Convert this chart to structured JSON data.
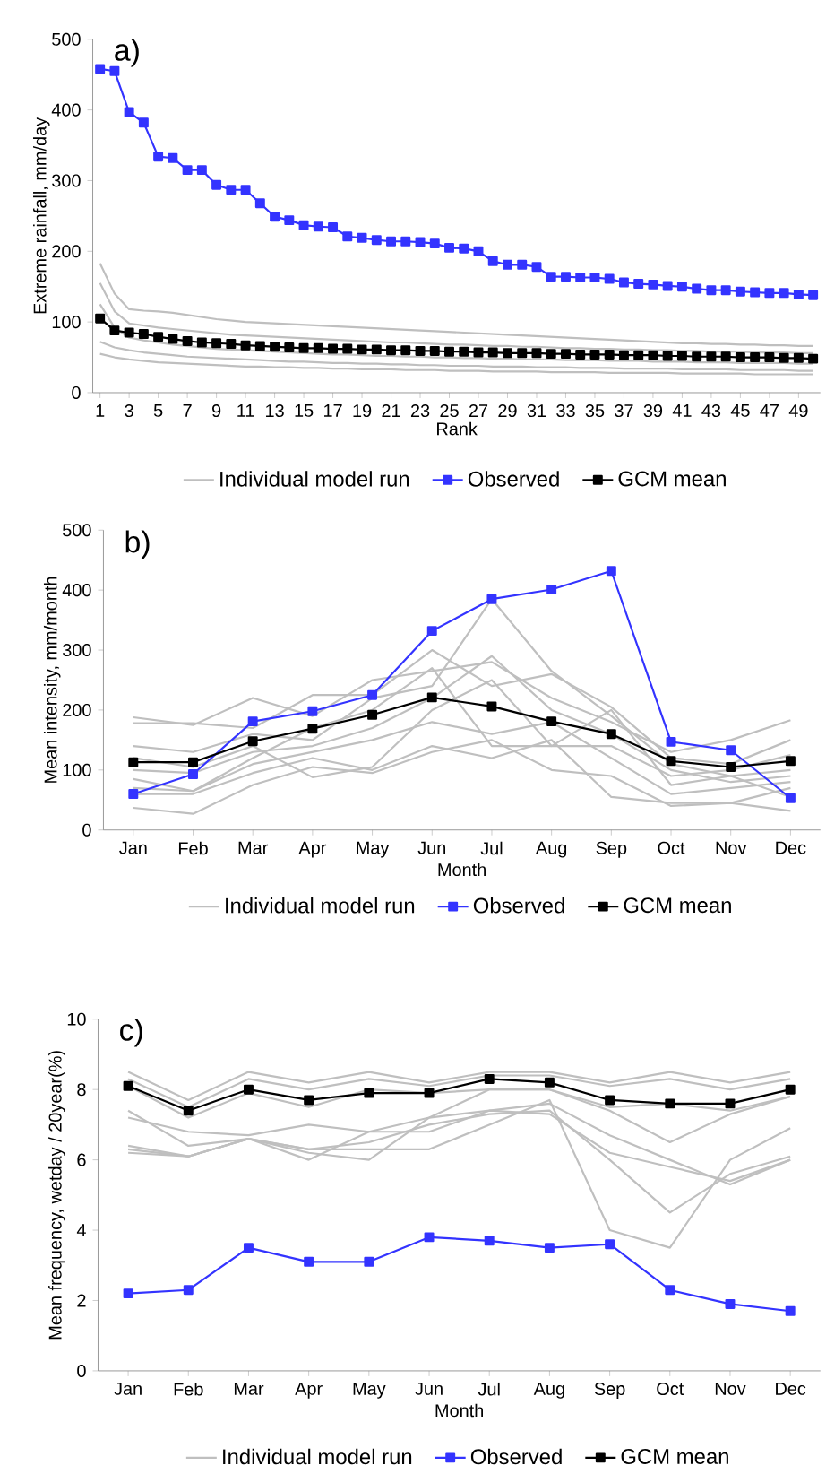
{
  "chart_data": [
    {
      "type": "line",
      "title": "a)",
      "xlabel": "Rank",
      "ylabel": "Extreme rainfall, mm/day",
      "legend": "bottom",
      "ylim": [
        0,
        500
      ],
      "yticks": [
        0,
        100,
        200,
        300,
        400,
        500
      ],
      "categories": [
        "1",
        null,
        "3",
        null,
        "5",
        null,
        "7",
        null,
        "9",
        null,
        "11",
        null,
        "13",
        null,
        "15",
        null,
        "17",
        null,
        "19",
        null,
        "21",
        null,
        "23",
        null,
        "25",
        null,
        "27",
        null,
        "29",
        null,
        "31",
        null,
        "33",
        null,
        "35",
        null,
        "37",
        null,
        "39",
        null,
        "41",
        null,
        "43",
        null,
        "45",
        null,
        "47",
        null,
        "49",
        null
      ],
      "series": [
        {
          "name": "Individual model run",
          "color": "#bfbfbf",
          "values": [
            183,
            140,
            118,
            116,
            115,
            113,
            110,
            107,
            104,
            102,
            100,
            99,
            98,
            97,
            96,
            95,
            94,
            93,
            92,
            91,
            90,
            89,
            88,
            87,
            86,
            85,
            84,
            83,
            82,
            81,
            80,
            79,
            78,
            77,
            76,
            75,
            74,
            73,
            72,
            71,
            70,
            70,
            69,
            69,
            68,
            68,
            67,
            67,
            66,
            66
          ]
        },
        {
          "color": "#bfbfbf",
          "values": [
            155,
            115,
            98,
            95,
            92,
            90,
            88,
            86,
            84,
            82,
            81,
            80,
            79,
            78,
            77,
            76,
            75,
            74,
            73,
            72,
            71,
            71,
            70,
            69,
            68,
            68,
            67,
            66,
            66,
            65,
            65,
            64,
            63,
            63,
            62,
            62,
            61,
            61,
            60,
            60,
            59,
            59,
            58,
            58,
            58,
            57,
            57,
            57,
            56,
            56
          ]
        },
        {
          "color": "#bfbfbf",
          "values": [
            125,
            92,
            78,
            74,
            71,
            68,
            66,
            64,
            62,
            61,
            60,
            59,
            58,
            57,
            56,
            55,
            54,
            54,
            53,
            52,
            52,
            51,
            51,
            50,
            50,
            49,
            49,
            48,
            48,
            47,
            47,
            47,
            46,
            46,
            46,
            45,
            45,
            45,
            44,
            44,
            44,
            43,
            43,
            43,
            42,
            42,
            42,
            42,
            41,
            41
          ]
        },
        {
          "color": "#bfbfbf",
          "values": [
            72,
            64,
            60,
            57,
            55,
            53,
            51,
            50,
            49,
            48,
            47,
            46,
            45,
            44,
            44,
            43,
            42,
            42,
            41,
            41,
            40,
            40,
            39,
            39,
            38,
            38,
            38,
            37,
            37,
            37,
            36,
            36,
            36,
            35,
            35,
            35,
            34,
            34,
            34,
            34,
            33,
            33,
            33,
            33,
            32,
            32,
            32,
            32,
            31,
            31
          ]
        },
        {
          "color": "#bfbfbf",
          "values": [
            55,
            50,
            47,
            45,
            43,
            42,
            41,
            40,
            39,
            38,
            37,
            37,
            36,
            36,
            35,
            35,
            34,
            34,
            33,
            33,
            33,
            32,
            32,
            32,
            31,
            31,
            31,
            30,
            30,
            30,
            30,
            29,
            29,
            29,
            29,
            28,
            28,
            28,
            28,
            28,
            27,
            27,
            27,
            27,
            27,
            26,
            26,
            26,
            26,
            26
          ]
        },
        {
          "name": "Observed",
          "color": "#3333ff",
          "marker": "square",
          "values": [
            458,
            455,
            397,
            382,
            334,
            332,
            315,
            315,
            294,
            287,
            287,
            268,
            249,
            244,
            237,
            235,
            234,
            221,
            219,
            216,
            214,
            214,
            213,
            211,
            205,
            204,
            200,
            186,
            181,
            181,
            178,
            164,
            164,
            163,
            163,
            161,
            156,
            154,
            153,
            151,
            150,
            147,
            145,
            145,
            143,
            142,
            141,
            141,
            139,
            138
          ]
        },
        {
          "name": "GCM mean",
          "color": "#000000",
          "marker": "square",
          "values": [
            105,
            88,
            85,
            83,
            79,
            76,
            73,
            71,
            70,
            69,
            67,
            66,
            65,
            64,
            63,
            63,
            62,
            62,
            61,
            61,
            60,
            60,
            59,
            59,
            58,
            58,
            57,
            57,
            56,
            56,
            56,
            55,
            55,
            54,
            54,
            54,
            53,
            53,
            53,
            52,
            52,
            51,
            51,
            51,
            50,
            50,
            50,
            49,
            49,
            48
          ]
        }
      ]
    },
    {
      "type": "line",
      "title": "b)",
      "xlabel": "Month",
      "ylabel": "Mean intensity, mm/month",
      "legend": "bottom",
      "ylim": [
        0,
        500
      ],
      "yticks": [
        0,
        100,
        200,
        300,
        400,
        500
      ],
      "categories": [
        "Jan",
        "Feb",
        "Mar",
        "Apr",
        "May",
        "Jun",
        "Jul",
        "Aug",
        "Sep",
        "Oct",
        "Nov",
        "Dec"
      ],
      "series": [
        {
          "name": "Individual model run",
          "color": "#bfbfbf",
          "values": [
            188,
            175,
            220,
            190,
            250,
            265,
            280,
            220,
            180,
            130,
            150,
            183
          ]
        },
        {
          "color": "#bfbfbf",
          "values": [
            178,
            178,
            170,
            225,
            225,
            300,
            240,
            260,
            205,
            120,
            110,
            150
          ]
        },
        {
          "color": "#bfbfbf",
          "values": [
            140,
            130,
            160,
            150,
            220,
            240,
            385,
            265,
            190,
            110,
            90,
            100
          ]
        },
        {
          "color": "#bfbfbf",
          "values": [
            100,
            95,
            130,
            140,
            170,
            220,
            290,
            200,
            160,
            100,
            80,
            90
          ]
        },
        {
          "color": "#bfbfbf",
          "values": [
            85,
            65,
            110,
            130,
            150,
            180,
            160,
            180,
            120,
            60,
            70,
            80
          ]
        },
        {
          "color": "#bfbfbf",
          "values": [
            60,
            60,
            95,
            120,
            100,
            140,
            120,
            150,
            55,
            45,
            45,
            70
          ]
        },
        {
          "color": "#bfbfbf",
          "values": [
            37,
            27,
            75,
            105,
            95,
            130,
            150,
            100,
            90,
            40,
            45,
            32
          ]
        },
        {
          "color": "#bfbfbf",
          "values": [
            120,
            105,
            140,
            88,
            105,
            200,
            250,
            140,
            140,
            90,
            100,
            125
          ]
        },
        {
          "color": "#bfbfbf",
          "values": [
            70,
            65,
            120,
            170,
            200,
            270,
            140,
            140,
            200,
            75,
            90,
            55
          ]
        },
        {
          "name": "Observed",
          "color": "#3333ff",
          "marker": "square",
          "values": [
            60,
            93,
            181,
            198,
            225,
            332,
            385,
            401,
            432,
            147,
            133,
            53
          ]
        },
        {
          "name": "GCM mean",
          "color": "#000000",
          "marker": "square",
          "values": [
            113,
            113,
            148,
            169,
            192,
            221,
            206,
            181,
            160,
            115,
            105,
            115
          ]
        }
      ]
    },
    {
      "type": "line",
      "title": "c)",
      "xlabel": "Month",
      "ylabel": "Mean frequency, wetday / 20year(%)",
      "legend": "bottom",
      "ylim": [
        0,
        10
      ],
      "yticks": [
        0,
        2,
        4,
        6,
        8,
        10
      ],
      "categories": [
        "Jan",
        "Feb",
        "Mar",
        "Apr",
        "May",
        "Jun",
        "Jul",
        "Aug",
        "Sep",
        "Oct",
        "Nov",
        "Dec"
      ],
      "series": [
        {
          "name": "Individual model run",
          "color": "#bfbfbf",
          "values": [
            8.5,
            7.7,
            8.5,
            8.2,
            8.5,
            8.2,
            8.5,
            8.5,
            8.2,
            8.5,
            8.2,
            8.5
          ]
        },
        {
          "color": "#bfbfbf",
          "values": [
            8.3,
            7.5,
            8.3,
            8.0,
            8.3,
            8.1,
            8.4,
            8.4,
            8.1,
            8.3,
            8.0,
            8.3
          ]
        },
        {
          "color": "#bfbfbf",
          "values": [
            8.1,
            7.2,
            7.9,
            7.5,
            8.0,
            7.9,
            8.0,
            8.0,
            7.5,
            7.6,
            7.4,
            7.8
          ]
        },
        {
          "color": "#bfbfbf",
          "values": [
            7.4,
            6.4,
            6.6,
            6.0,
            6.8,
            7.2,
            8.0,
            8.0,
            7.4,
            6.5,
            7.3,
            7.8
          ]
        },
        {
          "color": "#bfbfbf",
          "values": [
            7.2,
            6.8,
            6.7,
            7.0,
            6.8,
            6.8,
            7.4,
            7.6,
            6.7,
            6.0,
            5.3,
            6.0
          ]
        },
        {
          "color": "#bfbfbf",
          "values": [
            6.4,
            6.1,
            6.6,
            6.2,
            6.0,
            7.2,
            7.4,
            7.3,
            6.2,
            5.8,
            5.4,
            6.0
          ]
        },
        {
          "color": "#bfbfbf",
          "values": [
            6.3,
            6.1,
            6.6,
            6.3,
            6.3,
            6.3,
            7.0,
            7.7,
            4.0,
            3.5,
            6.0,
            6.9
          ]
        },
        {
          "color": "#bfbfbf",
          "values": [
            6.2,
            6.1,
            6.6,
            6.3,
            6.5,
            7.0,
            7.3,
            7.4,
            6.0,
            4.5,
            5.6,
            6.1
          ]
        },
        {
          "name": "Observed",
          "color": "#3333ff",
          "marker": "square",
          "values": [
            2.2,
            2.3,
            3.5,
            3.1,
            3.1,
            3.8,
            3.7,
            3.5,
            3.6,
            2.3,
            1.9,
            1.7
          ]
        },
        {
          "name": "GCM mean",
          "color": "#000000",
          "marker": "square",
          "values": [
            8.1,
            7.4,
            8.0,
            7.7,
            7.9,
            7.9,
            8.3,
            8.2,
            7.7,
            7.6,
            7.6,
            8.0
          ]
        }
      ]
    }
  ]
}
